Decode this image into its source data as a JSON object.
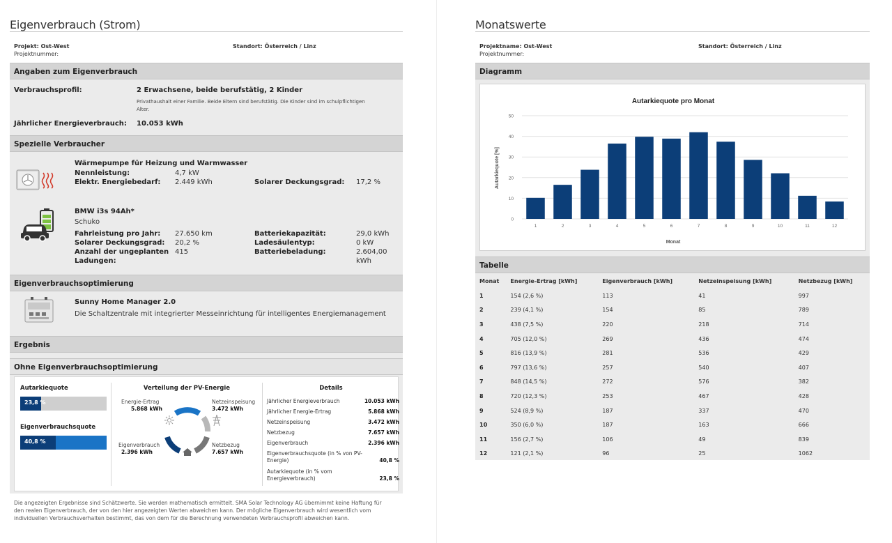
{
  "left": {
    "title": "Eigenverbrauch (Strom)",
    "project": "Projekt: Ost-West",
    "project_number": "Projektnummer:",
    "location": "Standort: Österreich / Linz",
    "angaben": {
      "header": "Angaben zum Eigenverbrauch",
      "profile_label": "Verbrauchsprofil:",
      "profile_value": "2 Erwachsene, beide berufstätig, 2 Kinder",
      "profile_desc_1": "Privathaushalt einer Familie. Beide Eltern sind berufstätig. Die Kinder sind im schulpflichtigen",
      "profile_desc_2": "Alter.",
      "annual_label": "Jährlicher Energieverbrauch:",
      "annual_value": "10.053 kWh"
    },
    "spezielle": {
      "header": "Spezielle Verbraucher",
      "heatpump_title": "Wärmepumpe für Heizung und Warmwasser",
      "heatpump_power_label": "Nennleistung:",
      "heatpump_power_value": "4,7 kW",
      "heatpump_demand_label": "Elektr. Energiebedarf:",
      "heatpump_demand_value": "2.449 kWh",
      "heatpump_solar_label": "Solarer Deckungsgrad:",
      "heatpump_solar_value": "17,2 %",
      "car_title": "BMW i3s 94Ah*",
      "car_sub": "Schuko",
      "car_km_label": "Fahrleistung pro Jahr:",
      "car_km_value": "27.650 km",
      "car_solar_label": "Solarer Deckungsgrad:",
      "car_solar_value": "20,2 %",
      "car_unplanned_label_1": "Anzahl der ungeplanten",
      "car_unplanned_label_2": "Ladungen:",
      "car_unplanned_value": "415",
      "car_battery_label": "Batteriekapazität:",
      "car_battery_value": "29,0 kWh",
      "car_station_label": "Ladesäulentyp:",
      "car_station_value": "0 kW",
      "car_charge_label": "Batteriebeladung:",
      "car_charge_value_1": "2.604,00",
      "car_charge_value_2": "kWh"
    },
    "optimierung": {
      "header": "Eigenverbrauchsoptimierung",
      "device_title": "Sunny Home Manager 2.0",
      "device_desc": "Die Schaltzentrale mit integrierter Messeinrichtung für intelligentes Energiemanagement"
    },
    "ergebnis": {
      "header": "Ergebnis",
      "subheader": "Ohne Eigenverbrauchsoptimierung",
      "autarkie_label": "Autarkiequote",
      "autarkie_value": "23,8 %",
      "autarkie_fraction": 0.238,
      "evq_label": "Eigenverbrauchsquote",
      "evq_value": "40,8 %",
      "evq_fraction": 0.408,
      "dist_title": "Verteilung der PV-Energie",
      "dist_ertrag_label": "Energie-Ertrag",
      "dist_ertrag_value": "5.868 kWh",
      "dist_einsp_label": "Netzeinspeisung",
      "dist_einsp_value": "3.472 kWh",
      "dist_ev_label": "Eigenverbrauch",
      "dist_ev_value": "2.396 kWh",
      "dist_bezug_label": "Netzbezug",
      "dist_bezug_value": "7.657 kWh",
      "details_title": "Details",
      "details": [
        {
          "label": "Jährlicher Energieverbrauch",
          "value": "10.053 kWh"
        },
        {
          "label": "Jährlicher Energie-Ertrag",
          "value": "5.868 kWh"
        },
        {
          "label": "Netzeinspeisung",
          "value": "3.472 kWh"
        },
        {
          "label": "Netzbezug",
          "value": "7.657 kWh"
        },
        {
          "label": "Eigenverbrauch",
          "value": "2.396 kWh"
        }
      ],
      "detail_evq_label_1": "Eigenverbrauchsquote (in % von PV-",
      "detail_evq_label_2": "Energie)",
      "detail_evq_value": "40,8 %",
      "detail_aq_label_1": "Autarkiequote (in % vom",
      "detail_aq_label_2": "Energieverbrauch)",
      "detail_aq_value": "23,8 %"
    },
    "disclaimer_1": "Die angezeigten Ergebnisse sind Schätzwerte. Sie werden mathematisch ermittelt. SMA Solar Technology AG übernimmt keine Haftung für",
    "disclaimer_2": "den realen Eigenverbrauch, der von den hier angezeigten Werten abweichen kann. Der mögliche Eigenverbrauch wird wesentlich vom",
    "disclaimer_3": "individuellen Verbrauchsverhalten bestimmt, das von dem für die Berechnung verwendeten Verbrauchsprofil abweichen kann."
  },
  "right": {
    "title": "Monatswerte",
    "project": "Projektname: Ost-West",
    "project_number": "Projektnummer:",
    "location": "Standort: Österreich / Linz",
    "diagram_header": "Diagramm",
    "table_header": "Tabelle",
    "table_columns": [
      "Monat",
      "Energie-Ertrag [kWh]",
      "Eigenverbrauch [kWh]",
      "Netzeinspeisung [kWh]",
      "Netzbezug [kWh]"
    ],
    "table_rows": [
      [
        "1",
        "154 (2,6 %)",
        "113",
        "41",
        "997"
      ],
      [
        "2",
        "239 (4,1 %)",
        "154",
        "85",
        "789"
      ],
      [
        "3",
        "438 (7,5 %)",
        "220",
        "218",
        "714"
      ],
      [
        "4",
        "705 (12,0 %)",
        "269",
        "436",
        "474"
      ],
      [
        "5",
        "816 (13,9 %)",
        "281",
        "536",
        "429"
      ],
      [
        "6",
        "797 (13,6 %)",
        "257",
        "540",
        "407"
      ],
      [
        "7",
        "848 (14,5 %)",
        "272",
        "576",
        "382"
      ],
      [
        "8",
        "720 (12,3 %)",
        "253",
        "467",
        "428"
      ],
      [
        "9",
        "524 (8,9 %)",
        "187",
        "337",
        "470"
      ],
      [
        "10",
        "350 (6,0 %)",
        "187",
        "163",
        "666"
      ],
      [
        "11",
        "156 (2,7 %)",
        "106",
        "49",
        "839"
      ],
      [
        "12",
        "121 (2,1 %)",
        "96",
        "25",
        "1062"
      ]
    ]
  },
  "chart_data": {
    "type": "bar",
    "title": "Autarkiequote pro Monat",
    "xlabel": "Monat",
    "ylabel": "Autarkiequote [%]",
    "categories": [
      "1",
      "2",
      "3",
      "4",
      "5",
      "6",
      "7",
      "8",
      "9",
      "10",
      "11",
      "12"
    ],
    "values": [
      10.2,
      16.5,
      23.8,
      36.5,
      39.8,
      38.9,
      42.0,
      37.4,
      28.6,
      22.1,
      11.2,
      8.4
    ],
    "yticks": [
      "0",
      "10",
      "20",
      "30",
      "40",
      "50"
    ],
    "ylim": [
      0,
      50
    ],
    "grid": true,
    "color": "#0c3e78"
  }
}
